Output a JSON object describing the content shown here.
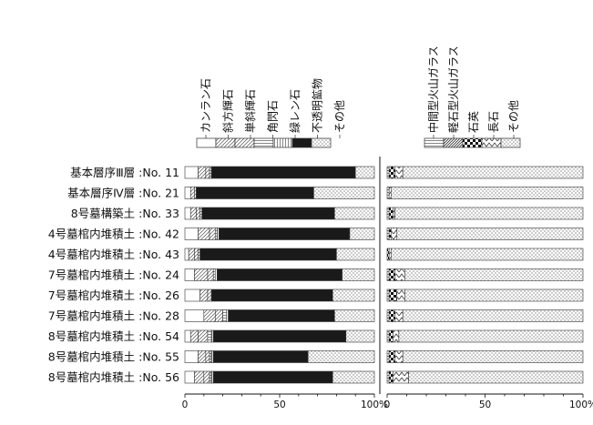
{
  "chart_data": [
    {
      "type": "bar",
      "stacked": true,
      "orientation": "horizontal",
      "unit": "%",
      "xlim": [
        0,
        100
      ],
      "xticks": [
        "0",
        "50",
        "100%"
      ],
      "categories": [
        "基本層序Ⅲ層 :No. 11",
        "基本層序Ⅳ層 :No. 21",
        "8号墓構築土 :No. 33",
        "4号墓棺内堆積土 :No. 42",
        "4号墓棺内堆積土 :No. 43",
        "7号墓棺内堆積土 :No. 24",
        "7号墓棺内堆積土 :No. 26",
        "7号墓棺内堆積土 :No. 28",
        "8号墓棺内堆積土 :No. 54",
        "8号墓棺内堆積土 :No. 55",
        "8号墓棺内堆積土 :No. 56"
      ],
      "legend": [
        "カンラン石",
        "斜方輝石",
        "単斜輝石",
        "角閃石",
        "緑レン石",
        "不透明鉱物",
        "その他"
      ],
      "series": [
        {
          "name": "カンラン石",
          "values": [
            7,
            3,
            3,
            7,
            2,
            5,
            8,
            10,
            3,
            7,
            5
          ]
        },
        {
          "name": "斜方輝石",
          "values": [
            4,
            2,
            3,
            6,
            3,
            7,
            4,
            6,
            4,
            4,
            5
          ]
        },
        {
          "name": "単斜輝石",
          "values": [
            2,
            1,
            2,
            3,
            2,
            3,
            2,
            4,
            5,
            2,
            3
          ]
        },
        {
          "name": "角閃石",
          "values": [
            1,
            0,
            1,
            1,
            1,
            1,
            0,
            2,
            2,
            1,
            1
          ]
        },
        {
          "name": "緑レン石",
          "values": [
            0,
            0,
            0,
            1,
            0,
            1,
            0,
            1,
            1,
            1,
            1
          ]
        },
        {
          "name": "不透明鉱物",
          "values": [
            76,
            62,
            70,
            69,
            72,
            66,
            64,
            56,
            70,
            50,
            63
          ]
        },
        {
          "name": "その他",
          "values": [
            10,
            32,
            21,
            13,
            20,
            17,
            22,
            21,
            15,
            35,
            22
          ]
        }
      ]
    },
    {
      "type": "bar",
      "stacked": true,
      "orientation": "horizontal",
      "unit": "%",
      "xlim": [
        0,
        100
      ],
      "xticks": [
        "0",
        "50",
        "100%"
      ],
      "legend": [
        "中間型火山ガラス",
        "軽石型火山ガラス",
        "石英",
        "長石",
        "その他"
      ],
      "series": [
        {
          "name": "中間型火山ガラス",
          "values": [
            1,
            1,
            1,
            1,
            0,
            1,
            1,
            1,
            1,
            1,
            1
          ]
        },
        {
          "name": "軽石型火山ガラス",
          "values": [
            0,
            0,
            0,
            0,
            0,
            0,
            0,
            0,
            0,
            0,
            0
          ]
        },
        {
          "name": "石英",
          "values": [
            3,
            0,
            2,
            1,
            1,
            3,
            4,
            3,
            2,
            3,
            2
          ]
        },
        {
          "name": "長石",
          "values": [
            4,
            1,
            1,
            3,
            1,
            5,
            4,
            4,
            3,
            4,
            8
          ]
        },
        {
          "name": "その他",
          "values": [
            92,
            98,
            96,
            95,
            98,
            91,
            91,
            92,
            94,
            92,
            89
          ]
        }
      ]
    }
  ],
  "colors": {
    "bar_stroke": "#333333",
    "opaque_fill": "#1a1a1a",
    "background": "#ffffff"
  }
}
